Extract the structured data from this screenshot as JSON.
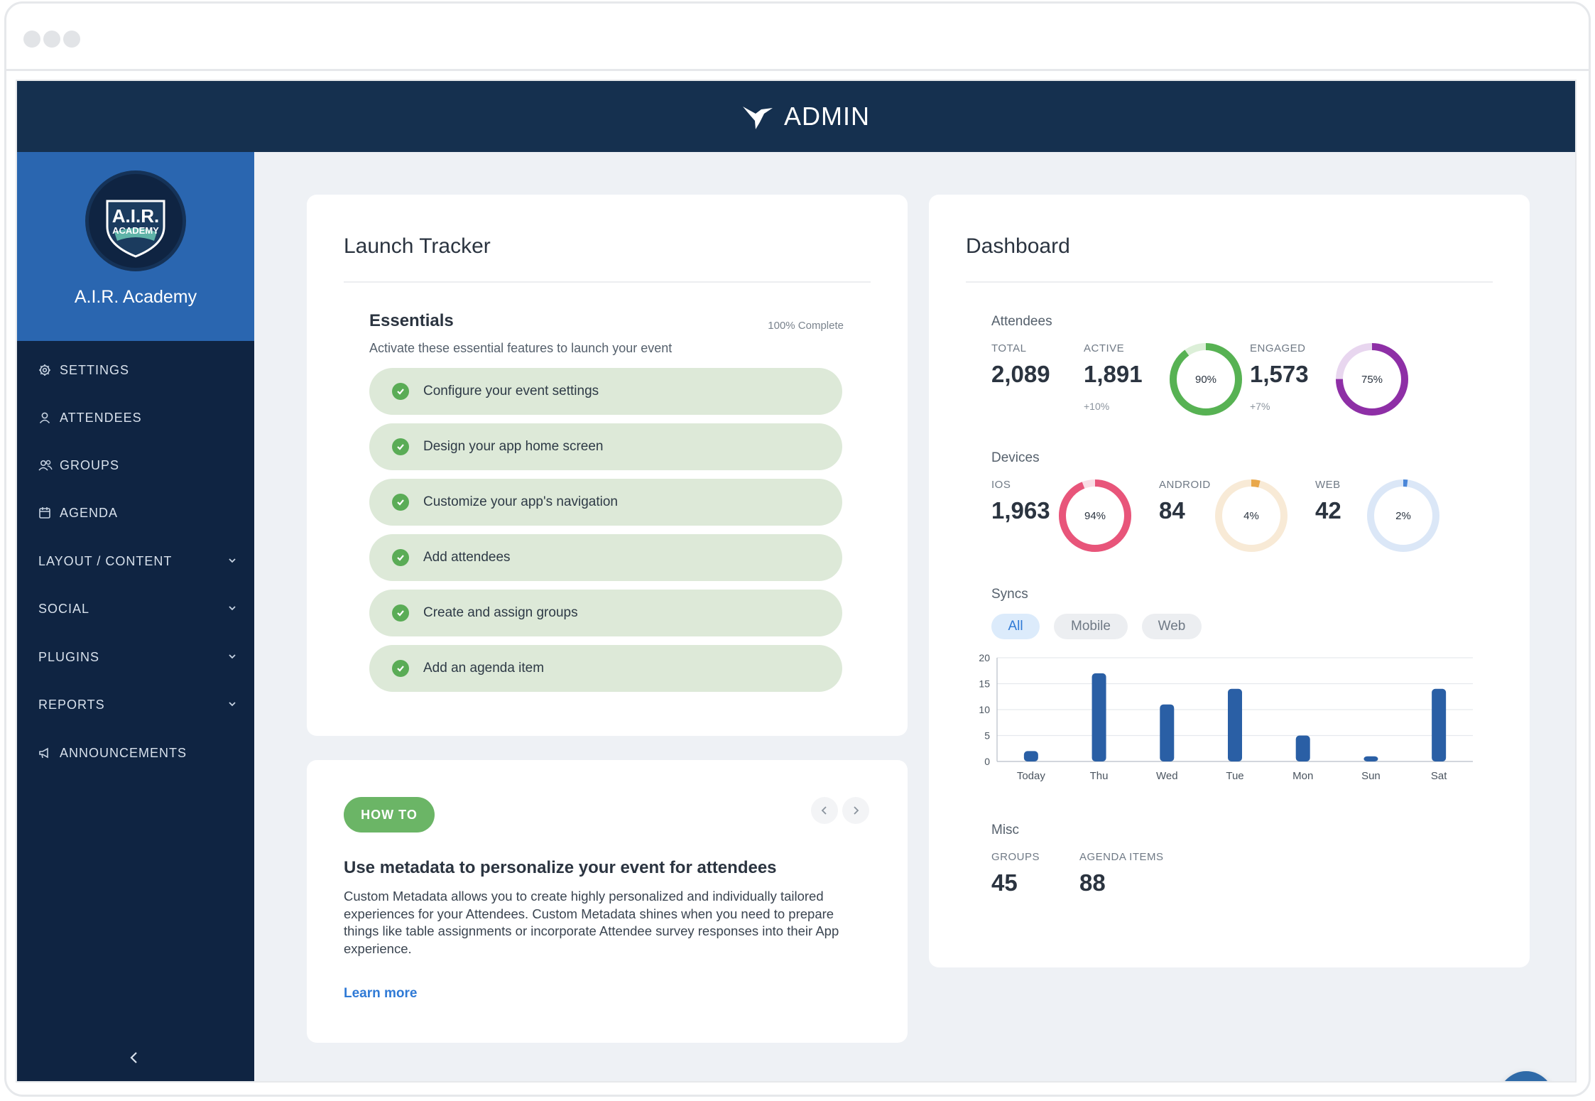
{
  "app": {
    "title": "ADMIN"
  },
  "org": {
    "name": "A.I.R. Academy",
    "logo_text_top": "A.I.R.",
    "logo_text_bottom": "ACADEMY"
  },
  "nav": [
    {
      "label": "SETTINGS",
      "icon": "gear-icon"
    },
    {
      "label": "ATTENDEES",
      "icon": "user-icon"
    },
    {
      "label": "GROUPS",
      "icon": "users-icon"
    },
    {
      "label": "AGENDA",
      "icon": "calendar-icon"
    },
    {
      "label": "LAYOUT / CONTENT",
      "icon": "chevron-down-icon"
    },
    {
      "label": "SOCIAL",
      "icon": "chevron-down-icon"
    },
    {
      "label": "PLUGINS",
      "icon": "chevron-down-icon"
    },
    {
      "label": "REPORTS",
      "icon": "chevron-down-icon"
    },
    {
      "label": "ANNOUNCEMENTS",
      "icon": "megaphone-icon"
    }
  ],
  "launch": {
    "title": "Launch Tracker",
    "section": "Essentials",
    "subtitle": "Activate these essential features to launch your event",
    "progress_text": "100% Complete",
    "tasks": [
      "Configure your event settings",
      "Design your app home screen",
      "Customize your app's navigation",
      "Add attendees",
      "Create and assign groups",
      "Add an agenda item"
    ]
  },
  "howto": {
    "badge": "HOW TO",
    "title": "Use metadata to personalize your event for attendees",
    "body": "Custom Metadata allows you to create highly personalized and individually tailored experiences for your Attendees. Custom Metadata shines when you need to prepare things like table assignments or incorporate Attendee survey responses into their App experience.",
    "link": "Learn more"
  },
  "dashboard": {
    "title": "Dashboard",
    "attendees": {
      "heading": "Attendees",
      "total_label": "TOTAL",
      "total": "2,089",
      "active_label": "ACTIVE",
      "active": "1,891",
      "active_delta": "+10%",
      "active_pct": "90%",
      "active_frac": 0.9,
      "engaged_label": "ENGAGED",
      "engaged": "1,573",
      "engaged_delta": "+7%",
      "engaged_pct": "75%",
      "engaged_frac": 0.75
    },
    "devices": {
      "heading": "Devices",
      "items": [
        {
          "label": "IOS",
          "value": "1,963",
          "pct": "94%",
          "frac": 0.94,
          "color": "#e8557a",
          "track": "#f9dde5"
        },
        {
          "label": "ANDROID",
          "value": "84",
          "pct": "4%",
          "frac": 0.04,
          "color": "#e9a84b",
          "track": "#f8ead6"
        },
        {
          "label": "WEB",
          "value": "42",
          "pct": "2%",
          "frac": 0.02,
          "color": "#4a86d8",
          "track": "#dbe7f7"
        }
      ]
    },
    "syncs": {
      "heading": "Syncs",
      "filters": [
        "All",
        "Mobile",
        "Web"
      ],
      "active_filter": "All"
    },
    "misc": {
      "heading": "Misc",
      "groups_label": "GROUPS",
      "groups": "45",
      "agenda_label": "AGENDA ITEMS",
      "agenda": "88"
    }
  },
  "chart_data": {
    "type": "bar",
    "categories": [
      "Today",
      "Thu",
      "Wed",
      "Tue",
      "Mon",
      "Sun",
      "Sat"
    ],
    "values": [
      2,
      17,
      11,
      14,
      5,
      1,
      14
    ],
    "ylim": [
      0,
      20
    ],
    "yticks": [
      0,
      5,
      10,
      15,
      20
    ],
    "grid": true,
    "color": "#2a5fa5"
  },
  "help": {
    "label": "?"
  }
}
